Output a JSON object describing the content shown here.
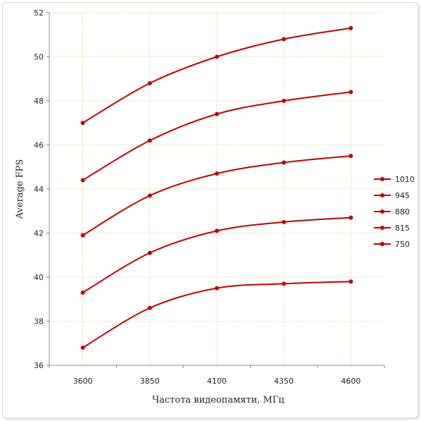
{
  "chart_data": {
    "type": "line",
    "title": "",
    "xlabel": "Частота видеопамяти, МГц",
    "ylabel": "Average FPS",
    "categories": [
      "3600",
      "3850",
      "4100",
      "4350",
      "4600"
    ],
    "ylim": [
      36,
      52
    ],
    "yticks": [
      36,
      38,
      40,
      42,
      44,
      46,
      48,
      50,
      52
    ],
    "grid": "vertical and horizontal dotted",
    "legend_position": "right",
    "line_color": "#c00000",
    "series": [
      {
        "name": "1010",
        "values": [
          47.0,
          48.8,
          50.0,
          50.8,
          51.3
        ]
      },
      {
        "name": "945",
        "values": [
          44.4,
          46.2,
          47.4,
          48.0,
          48.4
        ]
      },
      {
        "name": "880",
        "values": [
          41.9,
          43.7,
          44.7,
          45.2,
          45.5
        ]
      },
      {
        "name": "815",
        "values": [
          39.3,
          41.1,
          42.1,
          42.5,
          42.7
        ]
      },
      {
        "name": "750",
        "values": [
          36.8,
          38.6,
          39.5,
          39.7,
          39.8
        ]
      }
    ]
  }
}
